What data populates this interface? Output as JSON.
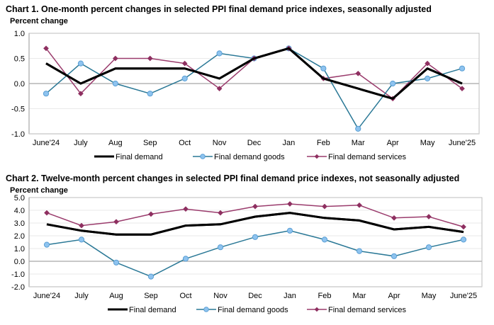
{
  "chart_data": [
    {
      "type": "line",
      "title": "Chart 1. One-month percent changes in selected PPI final demand price indexes, seasonally adjusted",
      "ylabel": "Percent change",
      "xlabel": "",
      "categories": [
        "June'24",
        "July",
        "Aug",
        "Sep",
        "Oct",
        "Nov",
        "Dec",
        "Jan",
        "Feb",
        "Mar",
        "Apr",
        "May",
        "June'25"
      ],
      "ylim": [
        -1.0,
        1.0
      ],
      "yticks": [
        "1.0",
        "0.5",
        "0.0",
        "-0.5",
        "-1.0"
      ],
      "ytick_values": [
        1.0,
        0.5,
        0.0,
        -0.5,
        -1.0
      ],
      "grid": true,
      "legend_position": "bottom",
      "series": [
        {
          "name": "Final demand",
          "color": "#000000",
          "marker": "none",
          "values": [
            0.4,
            0.0,
            0.3,
            0.3,
            0.3,
            0.1,
            0.5,
            0.7,
            0.1,
            -0.1,
            -0.3,
            0.3,
            0.0
          ]
        },
        {
          "name": "Final demand goods",
          "color": "#2a7896",
          "marker": "circle",
          "marker_color": "#8ec3ef",
          "values": [
            -0.2,
            0.4,
            0.0,
            -0.2,
            0.1,
            0.6,
            0.5,
            0.7,
            0.3,
            -0.9,
            0.0,
            0.1,
            0.3
          ]
        },
        {
          "name": "Final demand services",
          "color": "#9a3b6c",
          "marker": "diamond",
          "marker_color": "#8e2f60",
          "values": [
            0.7,
            -0.2,
            0.5,
            0.5,
            0.4,
            -0.1,
            0.5,
            0.7,
            0.1,
            0.2,
            -0.3,
            0.4,
            -0.1
          ]
        }
      ]
    },
    {
      "type": "line",
      "title": "Chart 2. Twelve-month percent changes in selected PPI final demand price indexes, not seasonally adjusted",
      "ylabel": "Percent change",
      "xlabel": "",
      "categories": [
        "June'24",
        "July",
        "Aug",
        "Sep",
        "Oct",
        "Nov",
        "Dec",
        "Jan",
        "Feb",
        "Mar",
        "Apr",
        "May",
        "June'25"
      ],
      "ylim": [
        -2.0,
        5.0
      ],
      "yticks": [
        "5.0",
        "4.0",
        "3.0",
        "2.0",
        "1.0",
        "0.0",
        "-1.0",
        "-2.0"
      ],
      "ytick_values": [
        5.0,
        4.0,
        3.0,
        2.0,
        1.0,
        0.0,
        -1.0,
        -2.0
      ],
      "grid": true,
      "legend_position": "bottom",
      "series": [
        {
          "name": "Final demand",
          "color": "#000000",
          "marker": "none",
          "values": [
            2.9,
            2.4,
            2.1,
            2.1,
            2.8,
            2.9,
            3.5,
            3.8,
            3.4,
            3.2,
            2.5,
            2.7,
            2.3
          ]
        },
        {
          "name": "Final demand goods",
          "color": "#2a7896",
          "marker": "circle",
          "marker_color": "#8ec3ef",
          "values": [
            1.3,
            1.7,
            -0.1,
            -1.2,
            0.2,
            1.1,
            1.9,
            2.4,
            1.7,
            0.8,
            0.4,
            1.1,
            1.7
          ]
        },
        {
          "name": "Final demand services",
          "color": "#9a3b6c",
          "marker": "diamond",
          "marker_color": "#8e2f60",
          "values": [
            3.8,
            2.8,
            3.1,
            3.7,
            4.1,
            3.8,
            4.3,
            4.5,
            4.3,
            4.4,
            3.4,
            3.5,
            2.7
          ]
        }
      ]
    }
  ]
}
